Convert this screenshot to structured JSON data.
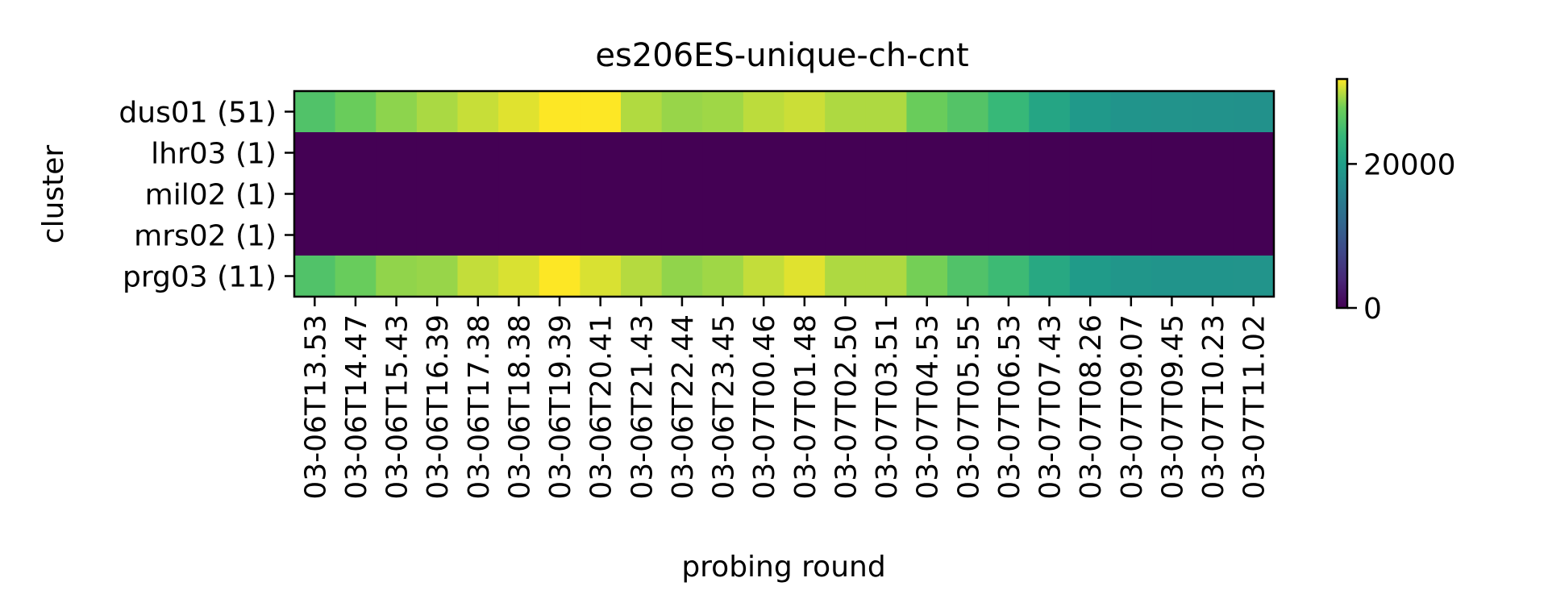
{
  "chart_data": {
    "type": "heatmap",
    "title": "es206ES-unique-ch-cnt",
    "xlabel": "probing round",
    "ylabel": "cluster",
    "y_categories": [
      "dus01 (51)",
      "lhr03 (1)",
      "mil02 (1)",
      "mrs02 (1)",
      "prg03 (11)"
    ],
    "x_categories": [
      "03-06T13.53",
      "03-06T14.47",
      "03-06T15.43",
      "03-06T16.39",
      "03-06T17.38",
      "03-06T18.38",
      "03-06T19.39",
      "03-06T20.41",
      "03-06T21.43",
      "03-06T22.44",
      "03-06T23.45",
      "03-07T00.46",
      "03-07T01.48",
      "03-07T02.50",
      "03-07T03.51",
      "03-07T04.53",
      "03-07T05.55",
      "03-07T06.53",
      "03-07T07.43",
      "03-07T08.26",
      "03-07T09.07",
      "03-07T09.45",
      "03-07T10.23",
      "03-07T11.02"
    ],
    "values": [
      [
        25800,
        27500,
        28700,
        29500,
        30300,
        31000,
        31800,
        31800,
        29700,
        29000,
        29200,
        30000,
        30400,
        29600,
        29600,
        27500,
        26000,
        24000,
        21000,
        19200,
        18500,
        18300,
        18200,
        18100
      ],
      [
        0,
        0,
        0,
        0,
        0,
        0,
        0,
        0,
        0,
        0,
        0,
        0,
        0,
        0,
        0,
        0,
        0,
        0,
        0,
        0,
        0,
        0,
        0,
        0
      ],
      [
        0,
        0,
        0,
        0,
        0,
        0,
        0,
        0,
        0,
        0,
        0,
        0,
        0,
        0,
        0,
        0,
        0,
        0,
        0,
        0,
        0,
        0,
        0,
        0
      ],
      [
        0,
        0,
        0,
        0,
        0,
        0,
        0,
        0,
        0,
        0,
        0,
        0,
        0,
        0,
        0,
        0,
        0,
        0,
        0,
        0,
        0,
        0,
        0,
        0
      ],
      [
        25800,
        27400,
        28800,
        29000,
        30200,
        30800,
        31800,
        30800,
        29800,
        28800,
        29200,
        30200,
        31000,
        29600,
        29600,
        28000,
        25800,
        24400,
        21500,
        19500,
        18700,
        18500,
        18500,
        18400
      ]
    ],
    "colorbar": {
      "ticks": [
        0,
        20000
      ],
      "tick_labels": [
        "0",
        "20000"
      ],
      "vmin": 0,
      "vmax": 31800
    },
    "colormap": "viridis",
    "grid": false
  }
}
